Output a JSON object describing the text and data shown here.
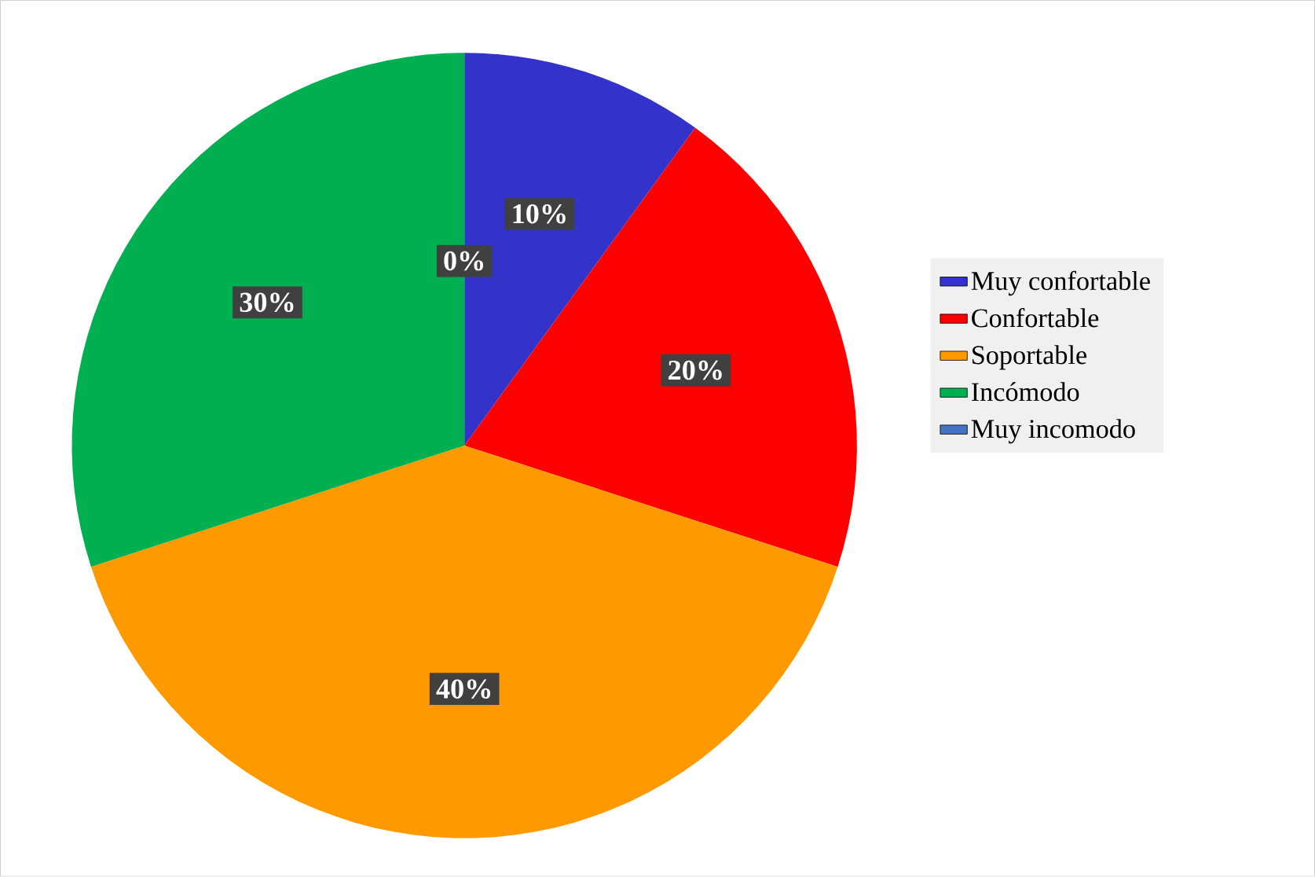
{
  "chart_data": {
    "type": "pie",
    "categories": [
      "Muy confortable",
      "Confortable",
      "Soportable",
      "Incómodo",
      "Muy incomodo"
    ],
    "values": [
      10,
      20,
      40,
      30,
      0
    ],
    "colors": [
      "#3333cc",
      "#ff0000",
      "#ff9900",
      "#00b050",
      "#4472c4"
    ],
    "value_labels": [
      "10%",
      "20%",
      "40%",
      "30%",
      "0%"
    ],
    "legend": "right"
  }
}
